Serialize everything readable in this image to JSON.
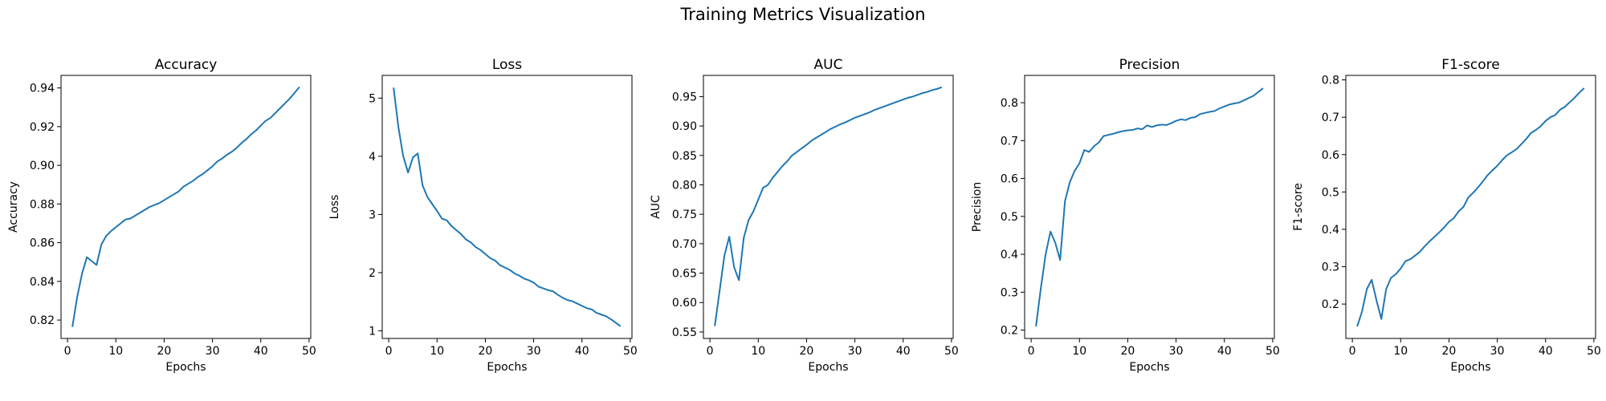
{
  "figure": {
    "title": "Training Metrics Visualization"
  },
  "colors": {
    "line": "#1f77b4",
    "axes": "#000000",
    "background": "#ffffff"
  },
  "chart_data": [
    {
      "type": "line",
      "title": "Accuracy",
      "xlabel": "Epochs",
      "ylabel": "Accuracy",
      "xlim": [
        -1.35,
        50.35
      ],
      "ylim": [
        0.8105,
        0.9465
      ],
      "xticks": [
        0,
        10,
        20,
        30,
        40,
        50
      ],
      "yticks": [
        0.82,
        0.84,
        0.86,
        0.88,
        0.9,
        0.92,
        0.94
      ],
      "ytick_labels": [
        "0.82",
        "0.84",
        "0.86",
        "0.88",
        "0.90",
        "0.92",
        "0.94"
      ],
      "grid": false,
      "series": [
        {
          "values": [
            0.8165,
            0.832,
            0.844,
            0.8525,
            0.8505,
            0.8485,
            0.859,
            0.8635,
            0.866,
            0.868,
            0.87,
            0.872,
            0.8725,
            0.874,
            0.8755,
            0.877,
            0.8785,
            0.8795,
            0.8805,
            0.882,
            0.8835,
            0.885,
            0.8865,
            0.889,
            0.8905,
            0.892,
            0.894,
            0.8955,
            0.8975,
            0.8995,
            0.902,
            0.9035,
            0.9055,
            0.907,
            0.909,
            0.9115,
            0.9135,
            0.916,
            0.918,
            0.9205,
            0.923,
            0.9245,
            0.927,
            0.9295,
            0.932,
            0.9345,
            0.9375,
            0.9405
          ]
        }
      ]
    },
    {
      "type": "line",
      "title": "Loss",
      "xlabel": "Epochs",
      "ylabel": "Loss",
      "xlim": [
        -1.35,
        50.35
      ],
      "ylim": [
        0.87,
        5.39
      ],
      "xticks": [
        0,
        10,
        20,
        30,
        40,
        50
      ],
      "yticks": [
        1,
        2,
        3,
        4,
        5
      ],
      "ytick_labels": [
        "1",
        "2",
        "3",
        "4",
        "5"
      ],
      "grid": false,
      "series": [
        {
          "values": [
            5.18,
            4.5,
            4.0,
            3.72,
            3.98,
            4.05,
            3.5,
            3.3,
            3.18,
            3.06,
            2.93,
            2.9,
            2.8,
            2.73,
            2.66,
            2.57,
            2.52,
            2.44,
            2.39,
            2.32,
            2.25,
            2.21,
            2.13,
            2.09,
            2.05,
            1.99,
            1.95,
            1.9,
            1.87,
            1.83,
            1.76,
            1.73,
            1.7,
            1.68,
            1.62,
            1.57,
            1.53,
            1.51,
            1.47,
            1.43,
            1.39,
            1.37,
            1.31,
            1.28,
            1.25,
            1.2,
            1.14,
            1.08
          ]
        }
      ]
    },
    {
      "type": "line",
      "title": "AUC",
      "xlabel": "Epochs",
      "ylabel": "AUC",
      "xlim": [
        -1.35,
        50.35
      ],
      "ylim": [
        0.539,
        0.986
      ],
      "xticks": [
        0,
        10,
        20,
        30,
        40,
        50
      ],
      "yticks": [
        0.55,
        0.6,
        0.65,
        0.7,
        0.75,
        0.8,
        0.85,
        0.9,
        0.95
      ],
      "ytick_labels": [
        "0.55",
        "0.60",
        "0.65",
        "0.70",
        "0.75",
        "0.80",
        "0.85",
        "0.90",
        "0.95"
      ],
      "grid": false,
      "series": [
        {
          "values": [
            0.56,
            0.62,
            0.68,
            0.712,
            0.66,
            0.638,
            0.71,
            0.74,
            0.755,
            0.775,
            0.795,
            0.8,
            0.812,
            0.822,
            0.832,
            0.84,
            0.85,
            0.856,
            0.862,
            0.868,
            0.875,
            0.88,
            0.885,
            0.89,
            0.895,
            0.899,
            0.903,
            0.906,
            0.91,
            0.914,
            0.917,
            0.92,
            0.923,
            0.927,
            0.93,
            0.933,
            0.936,
            0.939,
            0.942,
            0.945,
            0.948,
            0.95,
            0.953,
            0.956,
            0.958,
            0.961,
            0.963,
            0.966
          ]
        }
      ]
    },
    {
      "type": "line",
      "title": "Precision",
      "xlabel": "Epochs",
      "ylabel": "Precision",
      "xlim": [
        -1.35,
        50.35
      ],
      "ylim": [
        0.178,
        0.872
      ],
      "xticks": [
        0,
        10,
        20,
        30,
        40,
        50
      ],
      "yticks": [
        0.2,
        0.3,
        0.4,
        0.5,
        0.6,
        0.7,
        0.8
      ],
      "ytick_labels": [
        "0.2",
        "0.3",
        "0.4",
        "0.5",
        "0.6",
        "0.7",
        "0.8"
      ],
      "grid": false,
      "series": [
        {
          "values": [
            0.21,
            0.31,
            0.4,
            0.46,
            0.43,
            0.385,
            0.54,
            0.59,
            0.62,
            0.64,
            0.675,
            0.67,
            0.685,
            0.695,
            0.712,
            0.715,
            0.718,
            0.722,
            0.725,
            0.727,
            0.728,
            0.732,
            0.73,
            0.74,
            0.736,
            0.74,
            0.742,
            0.741,
            0.746,
            0.752,
            0.756,
            0.754,
            0.76,
            0.762,
            0.77,
            0.773,
            0.776,
            0.778,
            0.785,
            0.79,
            0.795,
            0.798,
            0.8,
            0.806,
            0.812,
            0.818,
            0.828,
            0.838
          ]
        }
      ]
    },
    {
      "type": "line",
      "title": "F1-score",
      "xlabel": "Epochs",
      "ylabel": "F1-score",
      "xlim": [
        -1.35,
        50.35
      ],
      "ylim": [
        0.108,
        0.812
      ],
      "xticks": [
        0,
        10,
        20,
        30,
        40,
        50
      ],
      "yticks": [
        0.2,
        0.3,
        0.4,
        0.5,
        0.6,
        0.7,
        0.8
      ],
      "ytick_labels": [
        "0.2",
        "0.3",
        "0.4",
        "0.5",
        "0.6",
        "0.7",
        "0.8"
      ],
      "grid": false,
      "series": [
        {
          "values": [
            0.14,
            0.18,
            0.24,
            0.265,
            0.21,
            0.16,
            0.24,
            0.27,
            0.28,
            0.295,
            0.315,
            0.32,
            0.33,
            0.34,
            0.355,
            0.368,
            0.38,
            0.392,
            0.405,
            0.42,
            0.43,
            0.448,
            0.46,
            0.485,
            0.498,
            0.512,
            0.528,
            0.545,
            0.558,
            0.57,
            0.585,
            0.598,
            0.606,
            0.615,
            0.628,
            0.642,
            0.658,
            0.666,
            0.676,
            0.69,
            0.7,
            0.706,
            0.72,
            0.728,
            0.74,
            0.752,
            0.766,
            0.778
          ]
        }
      ]
    }
  ]
}
